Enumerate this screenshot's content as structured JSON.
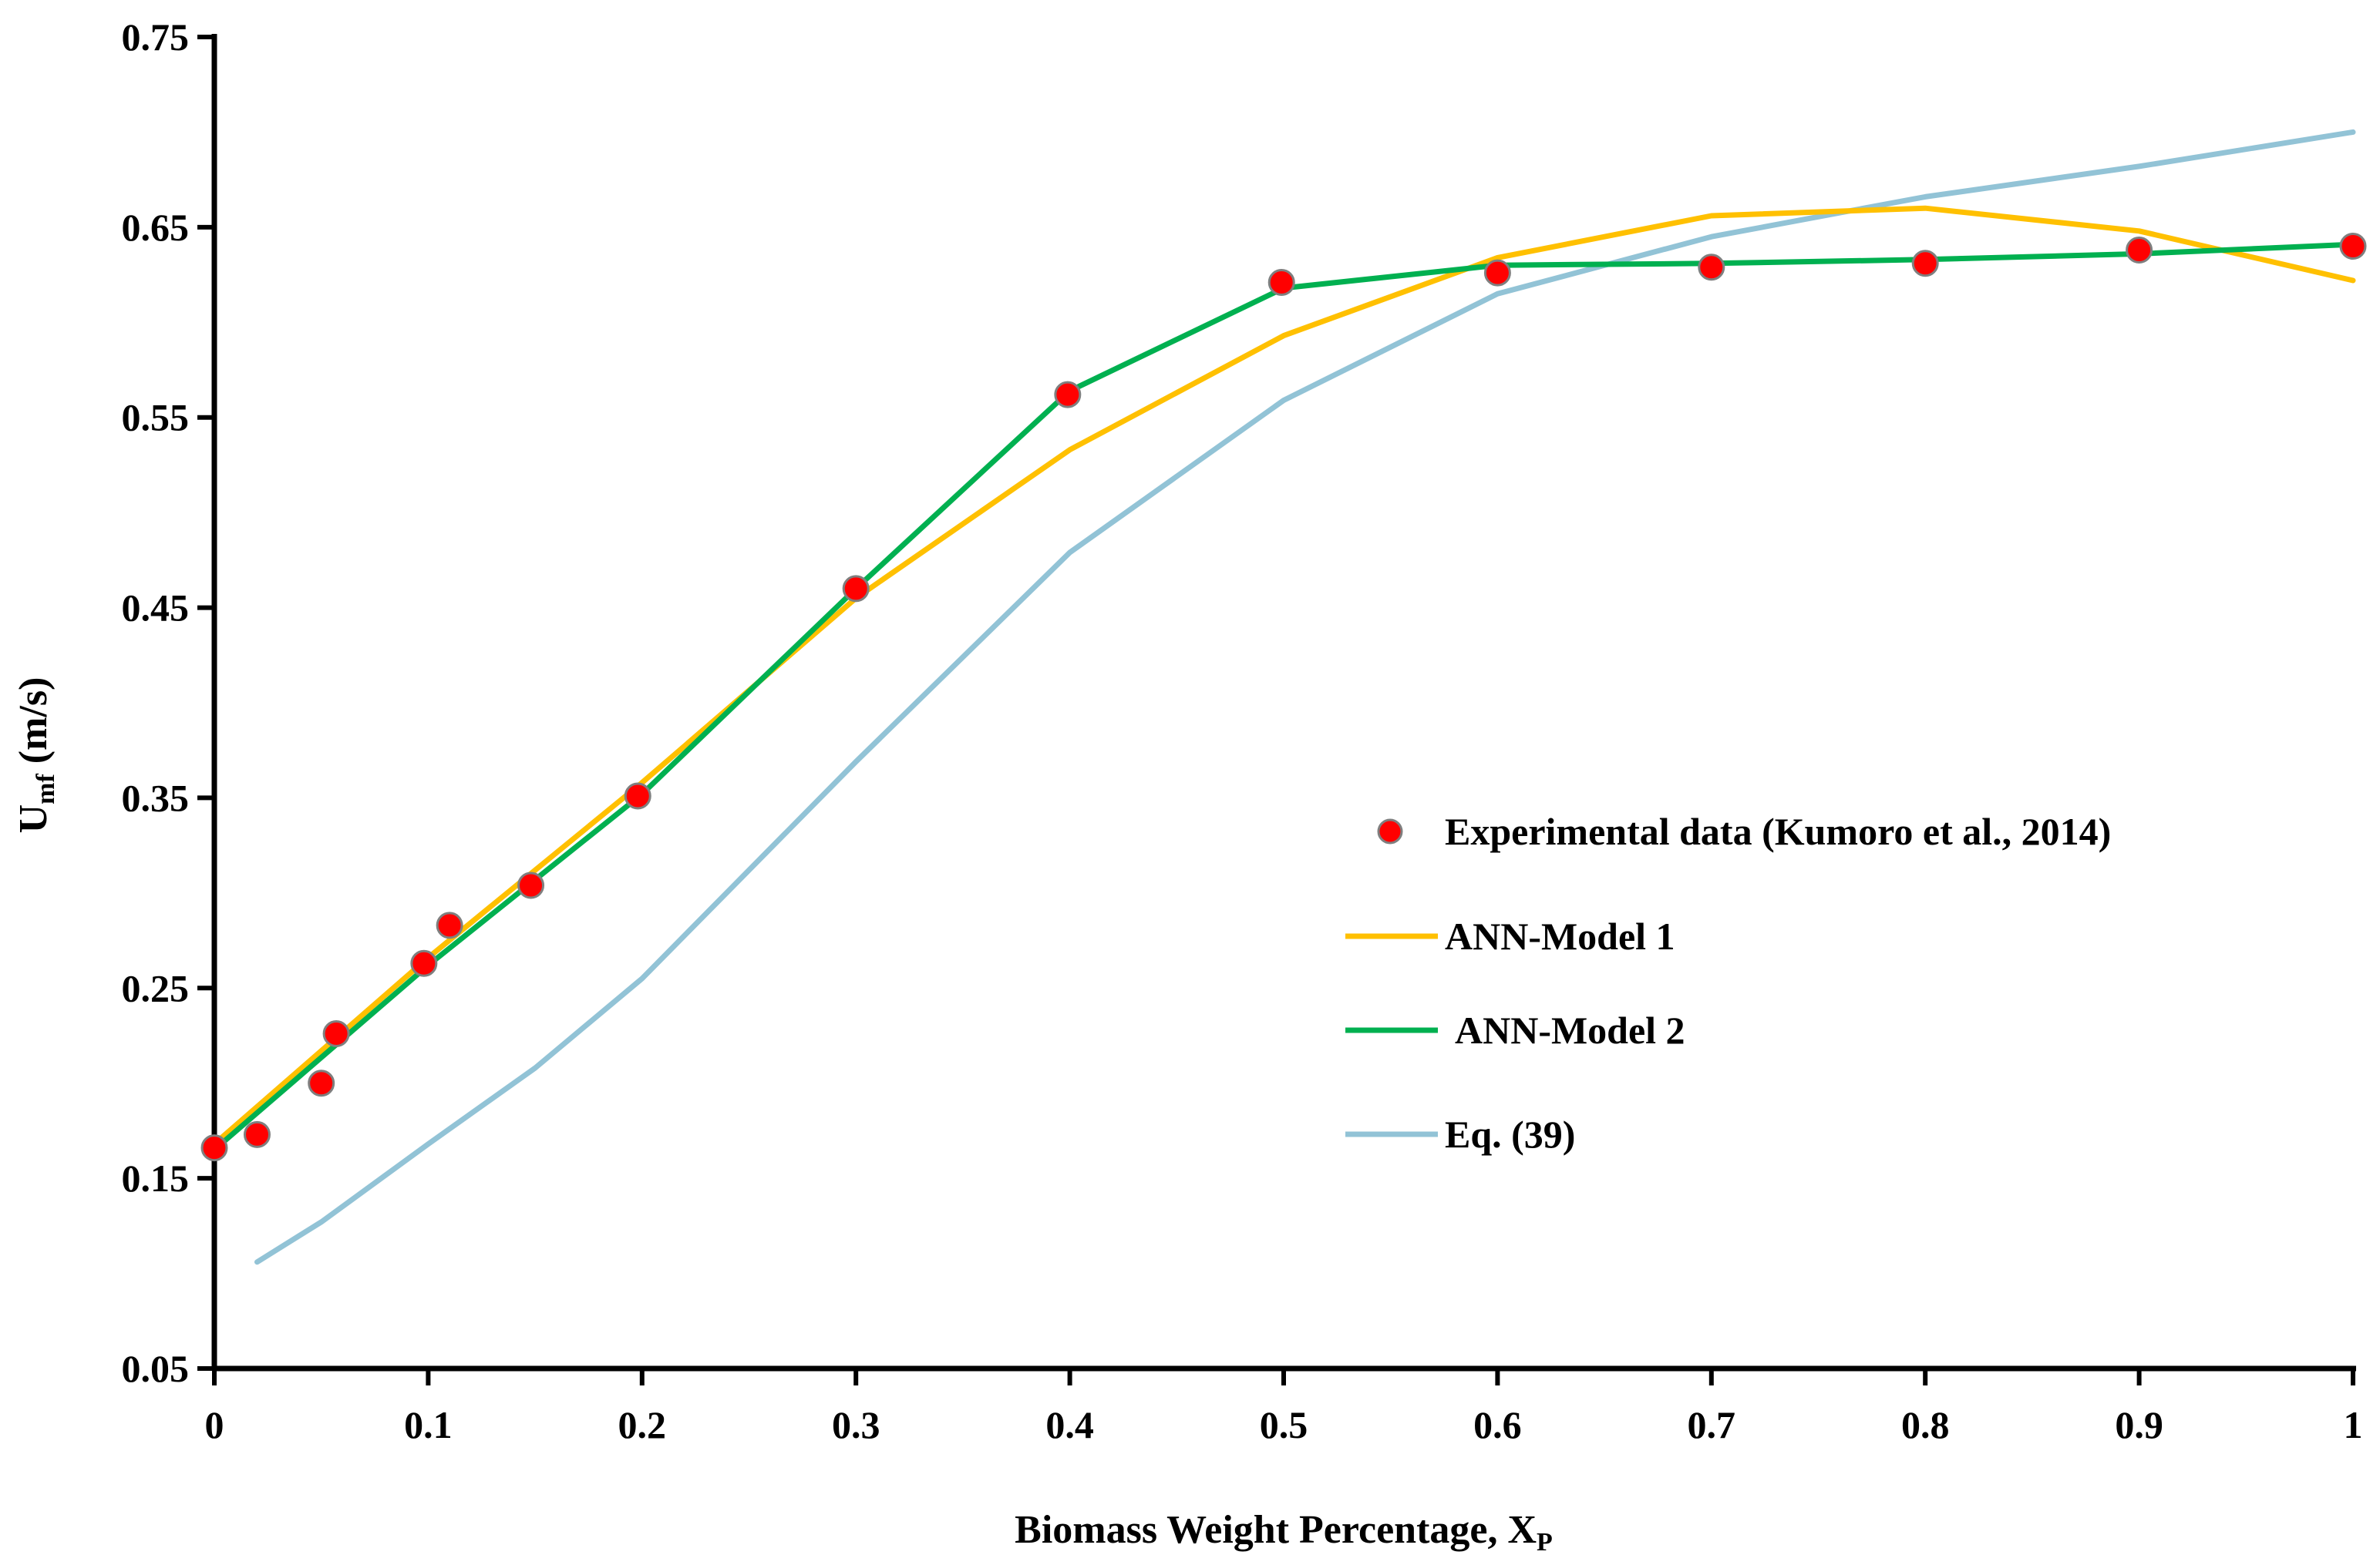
{
  "chart_data": {
    "type": "line",
    "title": "",
    "xlabel": "Biomass  Weight Percentage, X",
    "xlabel_sub": "P",
    "ylabel": "U",
    "ylabel_sub": "mf",
    "ylabel_unit": " (m/s)",
    "xlim": [
      0,
      1
    ],
    "ylim": [
      0.05,
      0.75
    ],
    "x_ticks": [
      0,
      0.1,
      0.2,
      0.3,
      0.4,
      0.5,
      0.6,
      0.7,
      0.8,
      0.9,
      1
    ],
    "x_tick_labels": [
      "0",
      "0.1",
      "0.2",
      "0.3",
      "0.4",
      "0.5",
      "0.6",
      "0.7",
      "0.8",
      "0.9",
      "1"
    ],
    "y_ticks": [
      0.05,
      0.15,
      0.25,
      0.35,
      0.45,
      0.55,
      0.65,
      0.75
    ],
    "y_tick_labels": [
      "0.05",
      "0.15",
      "0.25",
      "0.35",
      "0.45",
      "0.55",
      "0.65",
      "0.75"
    ],
    "grid": false,
    "legend_position": "right-middle",
    "series": [
      {
        "name": "Experimental data (Kumoro et al., 2014)",
        "kind": "scatter",
        "color": "#ff0000",
        "edge_color": "#7f7f7f",
        "x": [
          0,
          0.02,
          0.05,
          0.057,
          0.098,
          0.11,
          0.148,
          0.198,
          0.3,
          0.399,
          0.499,
          0.6,
          0.7,
          0.8,
          0.9,
          1
        ],
        "y": [
          0.166,
          0.173,
          0.2,
          0.226,
          0.263,
          0.283,
          0.304,
          0.351,
          0.46,
          0.562,
          0.621,
          0.626,
          0.629,
          0.631,
          0.638,
          0.64
        ]
      },
      {
        "name": "ANN-Model 1",
        "kind": "line",
        "color": "#ffc000",
        "x": [
          0,
          0.1,
          0.2,
          0.3,
          0.4,
          0.5,
          0.6,
          0.7,
          0.8,
          0.9,
          1
        ],
        "y": [
          0.168,
          0.266,
          0.358,
          0.455,
          0.533,
          0.593,
          0.634,
          0.656,
          0.66,
          0.648,
          0.622
        ]
      },
      {
        "name": "ANN-Model 2",
        "kind": "line",
        "color": "#00b050",
        "x": [
          0,
          0.1,
          0.2,
          0.3,
          0.4,
          0.5,
          0.6,
          0.7,
          0.8,
          0.9,
          1
        ],
        "y": [
          0.165,
          0.262,
          0.352,
          0.46,
          0.564,
          0.618,
          0.63,
          0.631,
          0.633,
          0.636,
          0.641
        ]
      },
      {
        "name": "Eq. (39)",
        "kind": "line",
        "color": "#92c3d6",
        "x": [
          0.02,
          0.05,
          0.1,
          0.15,
          0.2,
          0.3,
          0.4,
          0.5,
          0.6,
          0.7,
          0.8,
          0.9,
          1
        ],
        "y": [
          0.106,
          0.127,
          0.168,
          0.208,
          0.255,
          0.369,
          0.479,
          0.559,
          0.615,
          0.645,
          0.666,
          0.682,
          0.7
        ]
      }
    ]
  }
}
